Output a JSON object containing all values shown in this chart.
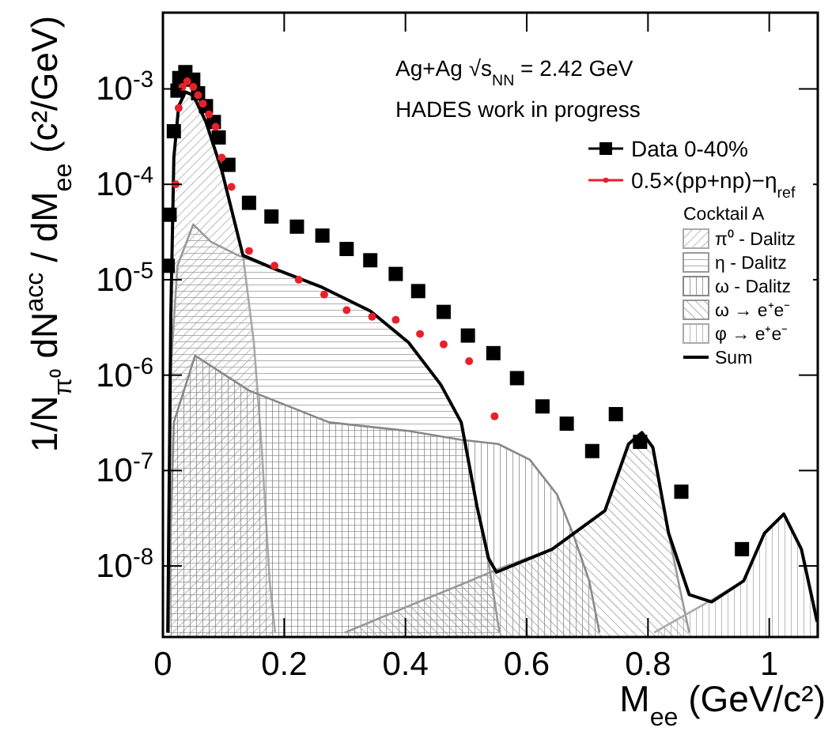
{
  "chart_data": {
    "type": "area",
    "xlabel": "M$_{ee}$ (GeV/c²)",
    "ylabel": "1/N$_{π⁰}$ dN$^{acc}$ / dM$_{ee}$ (c²/GeV)",
    "legend_title": "Cocktail A",
    "annotations": [
      "Ag+Ag √s$_{NN}$ = 2.42 GeV",
      "HADES work in progress"
    ],
    "xlim": [
      0,
      1.08
    ],
    "xticks": [
      0,
      0.2,
      0.4,
      0.6,
      0.8,
      1
    ],
    "ylim": [
      1.8e-09,
      0.0063
    ],
    "yticks": [
      {
        "value": 1e-08,
        "label": "10$^{-8}$"
      },
      {
        "value": 1e-07,
        "label": "10$^{-7}$"
      },
      {
        "value": 1e-06,
        "label": "10$^{-6}$"
      },
      {
        "value": 1e-05,
        "label": "10$^{-5}$"
      },
      {
        "value": 0.0001,
        "label": "10$^{-4}$"
      },
      {
        "value": 0.001,
        "label": "10$^{-3}$"
      }
    ],
    "log": "y",
    "grid": false,
    "legend": "top right",
    "series": [
      {
        "name": "Data 0-40%",
        "type": "scatter",
        "marker": "square",
        "color": "#000000",
        "x": [
          0.008,
          0.011,
          0.018,
          0.024,
          0.027,
          0.037,
          0.05,
          0.058,
          0.071,
          0.084,
          0.092,
          0.108,
          0.142,
          0.179,
          0.221,
          0.263,
          0.303,
          0.342,
          0.384,
          0.421,
          0.463,
          0.503,
          0.545,
          0.584,
          0.626,
          0.666,
          0.708,
          0.747,
          0.787,
          0.855,
          0.955
        ],
        "values": [
          1.4e-05,
          4.8e-05,
          0.00036,
          0.00096,
          0.0013,
          0.0015,
          0.00125,
          0.0009,
          0.00066,
          0.00045,
          0.00031,
          0.00016,
          6.4e-05,
          4.6e-05,
          3.6e-05,
          2.9e-05,
          2.1e-05,
          1.6e-05,
          1.15e-05,
          7.6e-06,
          4.6e-06,
          2.6e-06,
          1.7e-06,
          9.3e-07,
          4.7e-07,
          3.1e-07,
          1.6e-07,
          3.9e-07,
          2e-07,
          6e-08,
          1.5e-08
        ]
      },
      {
        "name": "0.5×(pp+np)−η$_{ref}$",
        "type": "scatter",
        "marker": "circle",
        "color": "#e8202a",
        "x": [
          0.021,
          0.026,
          0.032,
          0.04,
          0.05,
          0.058,
          0.066,
          0.076,
          0.087,
          0.097,
          0.113,
          0.142,
          0.184,
          0.224,
          0.266,
          0.303,
          0.345,
          0.384,
          0.424,
          0.463,
          0.505,
          0.547
        ],
        "values": [
          0.0001,
          0.00063,
          0.00105,
          0.0012,
          0.00105,
          0.00086,
          0.0007,
          0.00054,
          0.0004,
          0.00019,
          9.4e-05,
          2e-05,
          1.4e-05,
          1e-05,
          7e-06,
          4.8e-06,
          4.1e-06,
          3.8e-06,
          2.7e-06,
          2.1e-06,
          1.4e-06,
          3.7e-07
        ]
      },
      {
        "name": "π⁰ - Dalitz",
        "color": "#aaaaaa",
        "x": [
          0.008,
          0.013,
          0.018,
          0.026,
          0.037,
          0.05,
          0.071,
          0.097,
          0.132,
          0.15,
          0.163,
          0.176,
          0.185
        ],
        "values": [
          2e-09,
          4e-06,
          0.00019,
          0.00066,
          0.00093,
          0.00086,
          0.00045,
          0.00014,
          1.8e-05,
          2.2e-06,
          1.7e-07,
          7e-09,
          2e-09
        ]
      },
      {
        "name": "η - Dalitz",
        "color": "#999999",
        "x": [
          0.009,
          0.013,
          0.024,
          0.05,
          0.079,
          0.124,
          0.184,
          0.263,
          0.342,
          0.405,
          0.458,
          0.492,
          0.518,
          0.537,
          0.555
        ],
        "values": [
          2e-09,
          1.2e-06,
          1.4e-05,
          3.8e-05,
          2.5e-05,
          1.8e-05,
          1.3e-05,
          8.3e-06,
          4.7e-06,
          2.2e-06,
          8e-07,
          3.2e-07,
          4.2e-08,
          1.1e-08,
          2e-09
        ]
      },
      {
        "name": "ω - Dalitz",
        "color": "#888888",
        "x": [
          0.01,
          0.013,
          0.018,
          0.053,
          0.142,
          0.274,
          0.405,
          0.492,
          0.553,
          0.605,
          0.65,
          0.676,
          0.703,
          0.72
        ],
        "values": [
          2e-09,
          2.6e-08,
          3.2e-07,
          1.6e-06,
          6.9e-07,
          3.2e-07,
          2.6e-07,
          2.1e-07,
          1.9e-07,
          1.3e-07,
          5.6e-08,
          2.2e-08,
          7e-09,
          2e-09
        ]
      },
      {
        "name": "ω → e⁺e⁻",
        "color": "#999999",
        "x": [
          0.3,
          0.405,
          0.49,
          0.553,
          0.642,
          0.729,
          0.768,
          0.79,
          0.808,
          0.834,
          0.852,
          0.868
        ],
        "values": [
          2e-09,
          3.8e-09,
          6.3e-09,
          9.3e-09,
          1.5e-08,
          3.8e-08,
          1.9e-07,
          2.5e-07,
          1.75e-07,
          2.2e-08,
          6e-09,
          2e-09
        ]
      },
      {
        "name": "φ → e⁺e⁻",
        "color": "#aaaaaa",
        "x": [
          0.81,
          0.905,
          0.958,
          0.992,
          1.024,
          1.053,
          1.079
        ],
        "values": [
          2e-09,
          4.4e-09,
          7e-09,
          2.2e-08,
          3.5e-08,
          1.5e-08,
          2.6e-09
        ]
      },
      {
        "name": "Sum",
        "type": "line",
        "color": "#000000",
        "x": [
          0.008,
          0.013,
          0.018,
          0.026,
          0.037,
          0.05,
          0.071,
          0.097,
          0.132,
          0.184,
          0.263,
          0.342,
          0.405,
          0.458,
          0.492,
          0.518,
          0.537,
          0.55,
          0.642,
          0.729,
          0.768,
          0.79,
          0.808,
          0.834,
          0.868,
          0.905,
          0.958,
          0.992,
          1.024,
          1.053,
          1.079
        ],
        "values": [
          2e-09,
          4e-06,
          0.00019,
          0.00066,
          0.00093,
          0.00086,
          0.00045,
          0.00014,
          1.8e-05,
          1.3e-05,
          8.3e-06,
          4.7e-06,
          2.2e-06,
          8e-07,
          3.2e-07,
          4.2e-08,
          1.2e-08,
          8.6e-09,
          1.5e-08,
          3.8e-08,
          1.9e-07,
          2.5e-07,
          1.75e-07,
          2.2e-08,
          5e-09,
          4.2e-09,
          7e-09,
          2.2e-08,
          3.5e-08,
          1.5e-08,
          2.6e-09
        ]
      }
    ]
  }
}
